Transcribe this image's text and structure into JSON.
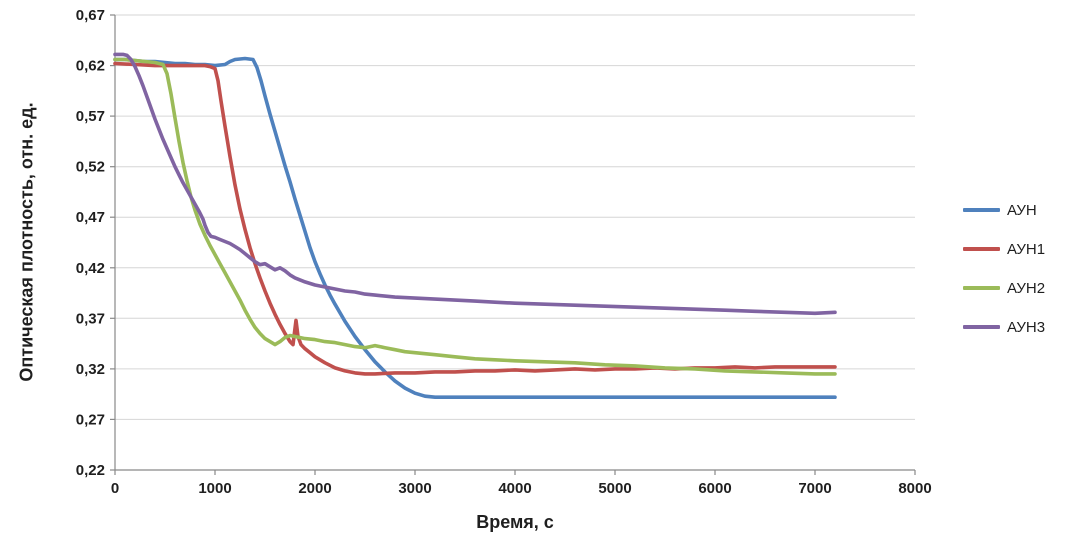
{
  "chart_data": {
    "type": "line",
    "title": "",
    "xlabel": "Время, с",
    "ylabel": "Оптическая плотность, отн. ед.",
    "xlim": [
      0,
      8000
    ],
    "ylim": [
      0.22,
      0.67
    ],
    "grid": "horizontal",
    "legend_position": "right",
    "x_ticks": {
      "values": [
        0,
        1000,
        2000,
        3000,
        4000,
        5000,
        6000,
        7000,
        8000
      ],
      "labels": [
        "0",
        "1000",
        "2000",
        "3000",
        "4000",
        "5000",
        "6000",
        "7000",
        "8000"
      ]
    },
    "y_ticks": {
      "values": [
        0.22,
        0.27,
        0.32,
        0.37,
        0.42,
        0.47,
        0.52,
        0.57,
        0.62,
        0.67
      ],
      "labels": [
        "0,22",
        "0,27",
        "0,32",
        "0,37",
        "0,42",
        "0,47",
        "0,52",
        "0,57",
        "0,62",
        "0,67"
      ]
    },
    "colors": {
      "gridline": "#d6d6d6",
      "axis": "#898989",
      "text": "#1f1f1f",
      "background": "#ffffff"
    },
    "series": [
      {
        "name": "АУН",
        "color": "#4F81BD",
        "points": [
          [
            0,
            0.626
          ],
          [
            100,
            0.626
          ],
          [
            200,
            0.625
          ],
          [
            300,
            0.624
          ],
          [
            400,
            0.624
          ],
          [
            500,
            0.623
          ],
          [
            600,
            0.622
          ],
          [
            700,
            0.622
          ],
          [
            800,
            0.621
          ],
          [
            900,
            0.621
          ],
          [
            1000,
            0.62
          ],
          [
            1100,
            0.621
          ],
          [
            1150,
            0.624
          ],
          [
            1200,
            0.626
          ],
          [
            1300,
            0.627
          ],
          [
            1380,
            0.626
          ],
          [
            1420,
            0.618
          ],
          [
            1460,
            0.605
          ],
          [
            1500,
            0.59
          ],
          [
            1550,
            0.572
          ],
          [
            1600,
            0.555
          ],
          [
            1650,
            0.538
          ],
          [
            1700,
            0.521
          ],
          [
            1750,
            0.505
          ],
          [
            1800,
            0.488
          ],
          [
            1850,
            0.472
          ],
          [
            1900,
            0.456
          ],
          [
            1950,
            0.44
          ],
          [
            2000,
            0.426
          ],
          [
            2050,
            0.414
          ],
          [
            2100,
            0.403
          ],
          [
            2150,
            0.393
          ],
          [
            2200,
            0.384
          ],
          [
            2300,
            0.367
          ],
          [
            2400,
            0.352
          ],
          [
            2500,
            0.339
          ],
          [
            2600,
            0.327
          ],
          [
            2700,
            0.317
          ],
          [
            2800,
            0.308
          ],
          [
            2900,
            0.301
          ],
          [
            3000,
            0.296
          ],
          [
            3100,
            0.293
          ],
          [
            3200,
            0.292
          ],
          [
            3400,
            0.292
          ],
          [
            3600,
            0.292
          ],
          [
            4000,
            0.292
          ],
          [
            4500,
            0.292
          ],
          [
            5000,
            0.292
          ],
          [
            5500,
            0.292
          ],
          [
            6000,
            0.292
          ],
          [
            6500,
            0.292
          ],
          [
            7000,
            0.292
          ],
          [
            7200,
            0.292
          ]
        ]
      },
      {
        "name": "АУН1",
        "color": "#C0504D",
        "points": [
          [
            0,
            0.622
          ],
          [
            200,
            0.621
          ],
          [
            400,
            0.62
          ],
          [
            600,
            0.62
          ],
          [
            800,
            0.62
          ],
          [
            900,
            0.62
          ],
          [
            950,
            0.619
          ],
          [
            1000,
            0.617
          ],
          [
            1030,
            0.605
          ],
          [
            1060,
            0.585
          ],
          [
            1100,
            0.56
          ],
          [
            1150,
            0.53
          ],
          [
            1200,
            0.502
          ],
          [
            1250,
            0.478
          ],
          [
            1300,
            0.458
          ],
          [
            1350,
            0.44
          ],
          [
            1400,
            0.424
          ],
          [
            1450,
            0.41
          ],
          [
            1500,
            0.397
          ],
          [
            1550,
            0.385
          ],
          [
            1600,
            0.374
          ],
          [
            1650,
            0.364
          ],
          [
            1700,
            0.355
          ],
          [
            1750,
            0.347
          ],
          [
            1780,
            0.344
          ],
          [
            1810,
            0.368
          ],
          [
            1830,
            0.352
          ],
          [
            1860,
            0.344
          ],
          [
            1900,
            0.34
          ],
          [
            1950,
            0.336
          ],
          [
            2000,
            0.332
          ],
          [
            2100,
            0.326
          ],
          [
            2200,
            0.321
          ],
          [
            2300,
            0.318
          ],
          [
            2400,
            0.316
          ],
          [
            2500,
            0.315
          ],
          [
            2600,
            0.315
          ],
          [
            2800,
            0.316
          ],
          [
            3000,
            0.316
          ],
          [
            3200,
            0.317
          ],
          [
            3400,
            0.317
          ],
          [
            3600,
            0.318
          ],
          [
            3800,
            0.318
          ],
          [
            4000,
            0.319
          ],
          [
            4200,
            0.318
          ],
          [
            4400,
            0.319
          ],
          [
            4600,
            0.32
          ],
          [
            4800,
            0.319
          ],
          [
            5000,
            0.32
          ],
          [
            5200,
            0.32
          ],
          [
            5400,
            0.321
          ],
          [
            5600,
            0.32
          ],
          [
            5800,
            0.321
          ],
          [
            6000,
            0.321
          ],
          [
            6200,
            0.322
          ],
          [
            6400,
            0.321
          ],
          [
            6600,
            0.322
          ],
          [
            6800,
            0.322
          ],
          [
            7000,
            0.322
          ],
          [
            7200,
            0.322
          ]
        ]
      },
      {
        "name": "АУН2",
        "color": "#9BBB59",
        "points": [
          [
            0,
            0.626
          ],
          [
            100,
            0.626
          ],
          [
            200,
            0.625
          ],
          [
            300,
            0.624
          ],
          [
            400,
            0.623
          ],
          [
            480,
            0.621
          ],
          [
            520,
            0.612
          ],
          [
            560,
            0.592
          ],
          [
            600,
            0.568
          ],
          [
            640,
            0.545
          ],
          [
            680,
            0.524
          ],
          [
            720,
            0.506
          ],
          [
            760,
            0.49
          ],
          [
            800,
            0.477
          ],
          [
            850,
            0.463
          ],
          [
            900,
            0.452
          ],
          [
            950,
            0.442
          ],
          [
            1000,
            0.433
          ],
          [
            1050,
            0.424
          ],
          [
            1100,
            0.415
          ],
          [
            1150,
            0.406
          ],
          [
            1200,
            0.397
          ],
          [
            1250,
            0.388
          ],
          [
            1300,
            0.378
          ],
          [
            1350,
            0.369
          ],
          [
            1400,
            0.361
          ],
          [
            1450,
            0.355
          ],
          [
            1500,
            0.35
          ],
          [
            1550,
            0.347
          ],
          [
            1600,
            0.344
          ],
          [
            1650,
            0.347
          ],
          [
            1700,
            0.351
          ],
          [
            1750,
            0.353
          ],
          [
            1800,
            0.352
          ],
          [
            1900,
            0.35
          ],
          [
            2000,
            0.349
          ],
          [
            2100,
            0.347
          ],
          [
            2200,
            0.346
          ],
          [
            2300,
            0.344
          ],
          [
            2400,
            0.342
          ],
          [
            2500,
            0.341
          ],
          [
            2600,
            0.343
          ],
          [
            2700,
            0.341
          ],
          [
            2800,
            0.339
          ],
          [
            2900,
            0.337
          ],
          [
            3000,
            0.336
          ],
          [
            3200,
            0.334
          ],
          [
            3400,
            0.332
          ],
          [
            3600,
            0.33
          ],
          [
            3800,
            0.329
          ],
          [
            4000,
            0.328
          ],
          [
            4300,
            0.327
          ],
          [
            4600,
            0.326
          ],
          [
            4900,
            0.324
          ],
          [
            5200,
            0.323
          ],
          [
            5500,
            0.321
          ],
          [
            5800,
            0.32
          ],
          [
            6100,
            0.318
          ],
          [
            6400,
            0.317
          ],
          [
            6700,
            0.316
          ],
          [
            7000,
            0.315
          ],
          [
            7200,
            0.315
          ]
        ]
      },
      {
        "name": "АУН3",
        "color": "#8064A2",
        "points": [
          [
            0,
            0.631
          ],
          [
            80,
            0.631
          ],
          [
            120,
            0.63
          ],
          [
            160,
            0.626
          ],
          [
            200,
            0.619
          ],
          [
            240,
            0.61
          ],
          [
            280,
            0.6
          ],
          [
            320,
            0.589
          ],
          [
            360,
            0.578
          ],
          [
            400,
            0.567
          ],
          [
            440,
            0.557
          ],
          [
            480,
            0.547
          ],
          [
            520,
            0.538
          ],
          [
            560,
            0.529
          ],
          [
            600,
            0.52
          ],
          [
            640,
            0.512
          ],
          [
            680,
            0.504
          ],
          [
            720,
            0.497
          ],
          [
            760,
            0.49
          ],
          [
            800,
            0.483
          ],
          [
            840,
            0.476
          ],
          [
            880,
            0.468
          ],
          [
            900,
            0.462
          ],
          [
            930,
            0.455
          ],
          [
            960,
            0.451
          ],
          [
            1000,
            0.45
          ],
          [
            1050,
            0.448
          ],
          [
            1100,
            0.446
          ],
          [
            1150,
            0.444
          ],
          [
            1200,
            0.441
          ],
          [
            1250,
            0.438
          ],
          [
            1300,
            0.434
          ],
          [
            1350,
            0.43
          ],
          [
            1400,
            0.426
          ],
          [
            1450,
            0.423
          ],
          [
            1500,
            0.424
          ],
          [
            1550,
            0.421
          ],
          [
            1600,
            0.418
          ],
          [
            1650,
            0.42
          ],
          [
            1700,
            0.417
          ],
          [
            1750,
            0.413
          ],
          [
            1800,
            0.41
          ],
          [
            1900,
            0.406
          ],
          [
            2000,
            0.403
          ],
          [
            2100,
            0.401
          ],
          [
            2200,
            0.399
          ],
          [
            2300,
            0.397
          ],
          [
            2400,
            0.396
          ],
          [
            2500,
            0.394
          ],
          [
            2600,
            0.393
          ],
          [
            2800,
            0.391
          ],
          [
            3000,
            0.39
          ],
          [
            3200,
            0.389
          ],
          [
            3400,
            0.388
          ],
          [
            3600,
            0.387
          ],
          [
            3800,
            0.386
          ],
          [
            4000,
            0.385
          ],
          [
            4300,
            0.384
          ],
          [
            4600,
            0.383
          ],
          [
            4900,
            0.382
          ],
          [
            5200,
            0.381
          ],
          [
            5500,
            0.38
          ],
          [
            5800,
            0.379
          ],
          [
            6100,
            0.378
          ],
          [
            6400,
            0.377
          ],
          [
            6700,
            0.376
          ],
          [
            7000,
            0.375
          ],
          [
            7200,
            0.376
          ]
        ]
      }
    ]
  }
}
